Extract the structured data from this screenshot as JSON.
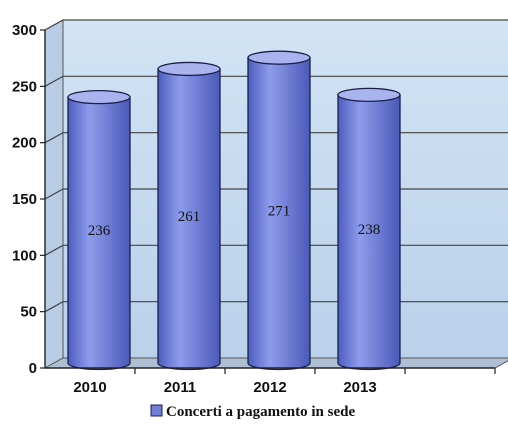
{
  "chart_data": {
    "type": "bar",
    "style": "3d-cylinder",
    "categories": [
      "2010",
      "2011",
      "2012",
      "2013"
    ],
    "series": [
      {
        "name": "Concerti a pagamento in sede",
        "values": [
          236,
          261,
          271,
          238
        ]
      }
    ],
    "ylim": [
      0,
      300
    ],
    "yticks": [
      0,
      50,
      100,
      150,
      200,
      250,
      300
    ],
    "grid": true,
    "legend": "bottom",
    "colors": {
      "bar_fill": "#6f7fd8",
      "bar_top": "#a9b4ee",
      "bar_stroke": "#1a1f4a",
      "wall": "#c6dcf0",
      "floor": "#aebfd4",
      "grid": "#444444"
    }
  }
}
